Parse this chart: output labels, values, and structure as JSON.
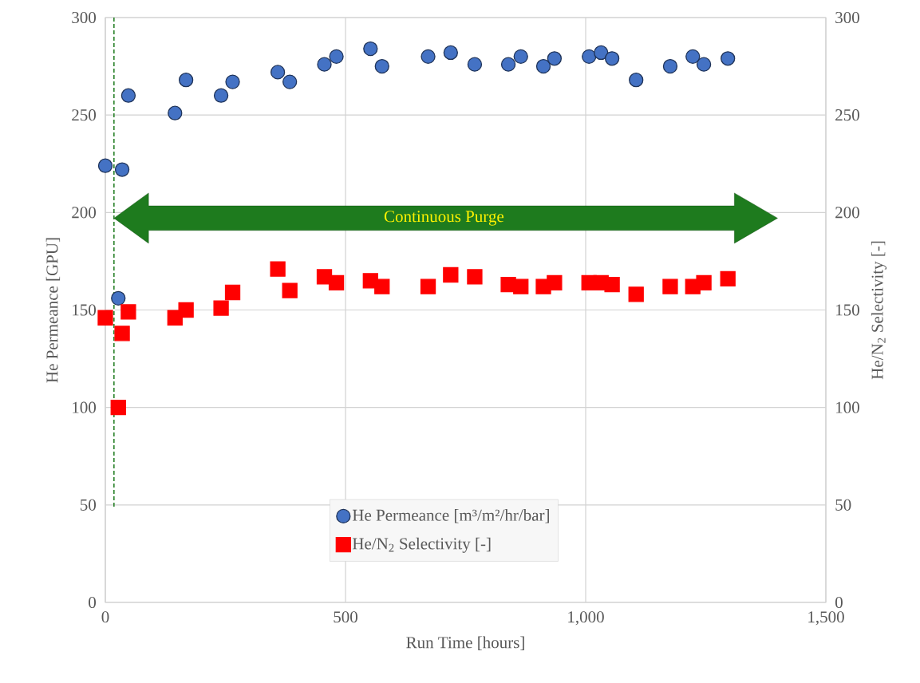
{
  "chart_data": {
    "type": "scatter",
    "xlabel": "Run Time [hours]",
    "ylabel": "He Permeance [GPU]",
    "y2label": "He/N$_{2}$ Selectivity [-]",
    "xlim": [
      0,
      1500
    ],
    "xticks": [
      0,
      500,
      {
        "value": 1000,
        "label": "1,000"
      },
      {
        "value": 1500,
        "label": "1,500"
      }
    ],
    "ylim": [
      0,
      300
    ],
    "yticks": [
      0,
      50,
      100,
      150,
      200,
      250,
      300
    ],
    "y2lim": [
      0,
      300
    ],
    "y2ticks": [
      0,
      50,
      100,
      150,
      200,
      250,
      300
    ],
    "grid": true,
    "legend": "bottom",
    "annotations": [
      "Continuous Purge"
    ],
    "ref_lines": [
      {
        "axis": "x",
        "value": 18,
        "color": "#1e7b1e",
        "line_style": "dashed"
      }
    ],
    "series": [
      {
        "name": "He Permeance [m³/m²/hr/bar]",
        "color": "#4472c4",
        "marker": "circle",
        "x": [
          0,
          35,
          27,
          48,
          145,
          168,
          241,
          265,
          359,
          384,
          456,
          481,
          552,
          576,
          672,
          719,
          769,
          839,
          865,
          912,
          935,
          1007,
          1032,
          1055,
          1105,
          1176,
          1223,
          1246,
          1296
        ],
        "values": [
          224,
          222,
          156,
          260,
          251,
          268,
          260,
          267,
          272,
          267,
          276,
          280,
          284,
          275,
          280,
          282,
          276,
          276,
          280,
          275,
          279,
          280,
          282,
          279,
          268,
          275,
          280,
          276,
          279
        ]
      },
      {
        "name": "He/N$_{2}$ Selectivity [-]",
        "color": "#ff0000",
        "marker": "square",
        "axis": "y2",
        "x": [
          0,
          35,
          27,
          48,
          145,
          168,
          241,
          265,
          359,
          384,
          456,
          481,
          552,
          576,
          672,
          719,
          769,
          839,
          865,
          912,
          935,
          1007,
          1032,
          1055,
          1105,
          1176,
          1223,
          1246,
          1296
        ],
        "values": [
          146,
          138,
          100,
          149,
          146,
          150,
          151,
          159,
          171,
          160,
          167,
          164,
          165,
          162,
          162,
          168,
          167,
          163,
          162,
          162,
          164,
          164,
          164,
          163,
          158,
          162,
          162,
          164,
          166
        ]
      }
    ]
  }
}
